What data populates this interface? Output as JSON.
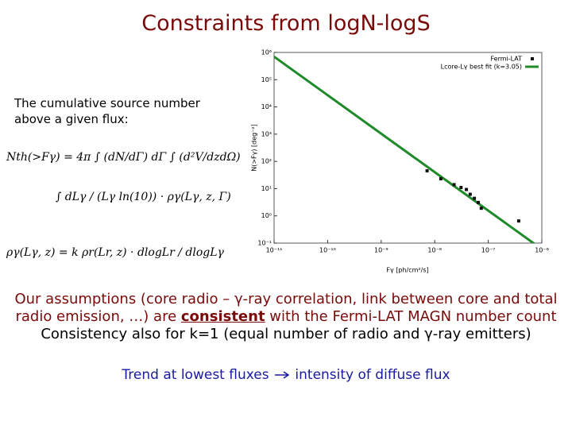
{
  "header": {
    "title": "Constraints from logN-logS"
  },
  "intro": "The cumulative source number above a given flux:",
  "equations": [
    "Nth(>Fγ) = 4π ∫ (dN/dΓ) dΓ ∫ (d²V/dzdΩ)",
    "∫ dLγ / (Lγ ln(10)) · ργ(Lγ, z, Γ)",
    "ργ(Lγ, z) = k ρr(Lr, z) · dlogLr / dlogLγ"
  ],
  "paragraph": {
    "before": "Our assumptions (core radio – γ-ray correlation, link between core and total radio emission, …) are ",
    "emphasis": "consistent",
    "after": " with the Fermi-LAT MAGN number count",
    "second": "Consistency also for k=1 (equal number of radio and γ-ray emitters)"
  },
  "trend": {
    "start": "Trend at lowest fluxes",
    "end": "intensity of diffuse flux"
  },
  "chart_data": {
    "type": "scatter",
    "xlabel": "Fγ [ph/cm²/s]",
    "ylabel": "N(>Fγ) [deg⁻²]",
    "log_x": true,
    "log_y": true,
    "xlim": [
      1e-11,
      1e-06
    ],
    "ylim": [
      0.1,
      1000000
    ],
    "xticks": [
      {
        "value": 1e-11,
        "label": "10⁻¹¹"
      },
      {
        "value": 1e-10,
        "label": "10⁻¹⁰"
      },
      {
        "value": 1e-09,
        "label": "10⁻⁹"
      },
      {
        "value": 1e-08,
        "label": "10⁻⁸"
      },
      {
        "value": 1e-07,
        "label": "10⁻⁷"
      },
      {
        "value": 1e-06,
        "label": "10⁻⁶"
      }
    ],
    "yticks": [
      {
        "value": 0.1,
        "label": "10⁻¹"
      },
      {
        "value": 1,
        "label": "10⁰"
      },
      {
        "value": 10,
        "label": "10¹"
      },
      {
        "value": 100,
        "label": "10²"
      },
      {
        "value": 1000,
        "label": "10³"
      },
      {
        "value": 10000,
        "label": "10⁴"
      },
      {
        "value": 100000,
        "label": "10⁵"
      },
      {
        "value": 1000000,
        "label": "10⁶"
      }
    ],
    "series": [
      {
        "name": "Fermi-LAT",
        "kind": "points",
        "color": "#111111",
        "x": [
          7.2e-09,
          1.3e-08,
          2.3e-08,
          3.1e-08,
          3.9e-08,
          4.6e-08,
          5.5e-08,
          6.5e-08,
          7.4e-08,
          3.7e-07
        ],
        "values": [
          45,
          23,
          14,
          11,
          9.3,
          6.2,
          4.4,
          3.1,
          1.9,
          0.65
        ]
      },
      {
        "name": "Lcore-Lγ best fit (k=3.05)",
        "kind": "line",
        "color": "#1f8a2a",
        "x": [
          1e-11,
          1e-06
        ],
        "values": [
          700000,
          0.06
        ]
      }
    ]
  }
}
